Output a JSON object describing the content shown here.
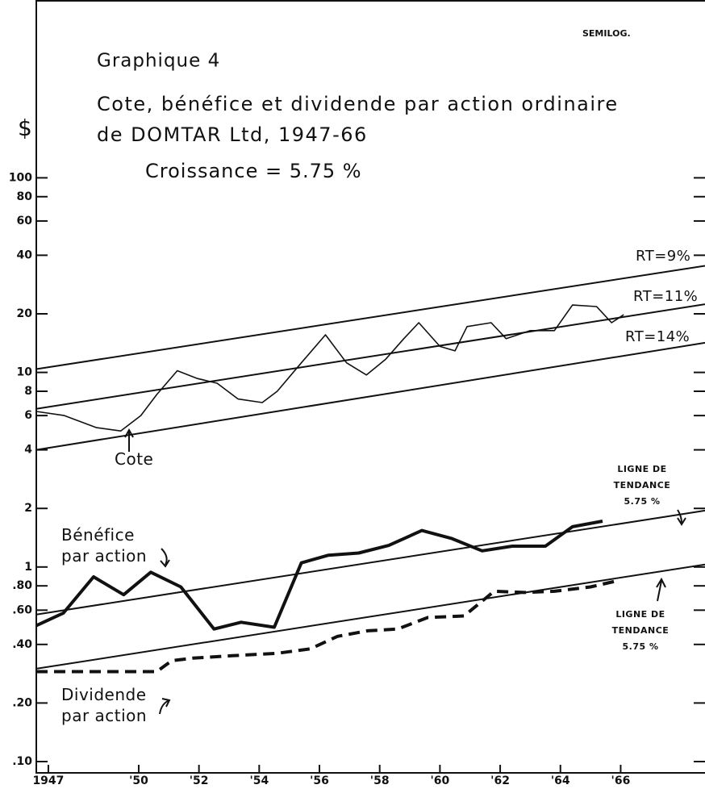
{
  "chart_data": {
    "type": "line",
    "corner_note": "SEMILOG.",
    "figure_label": "Graphique 4",
    "title": "Cote, bénéfice et dividende par action ordinaire",
    "subtitle": "de DOMTAR Ltd, 1947-66",
    "growth_note": "Croissance = 5.75 %",
    "y_label": "$",
    "log_scale": true,
    "xlim": [
      1946.6,
      1968.8
    ],
    "xticks": [
      {
        "value": 1947,
        "label": "1947"
      },
      {
        "value": 1950,
        "label": "'50"
      },
      {
        "value": 1952,
        "label": "'52"
      },
      {
        "value": 1954,
        "label": "'54"
      },
      {
        "value": 1956,
        "label": "'56"
      },
      {
        "value": 1958,
        "label": "'58"
      },
      {
        "value": 1960,
        "label": "'60"
      },
      {
        "value": 1962,
        "label": "'62"
      },
      {
        "value": 1964,
        "label": "'64"
      },
      {
        "value": 1966,
        "label": "'66"
      }
    ],
    "ylim": [
      0.0875,
      820
    ],
    "yticks": [
      100,
      80,
      60,
      40,
      20,
      10,
      8,
      6,
      4,
      2,
      1,
      {
        "value": 0.8,
        "label": ".80"
      },
      {
        "value": 0.6,
        "label": ".60"
      },
      {
        "value": 0.4,
        "label": ".40"
      },
      {
        "value": 0.2,
        "label": ".20"
      },
      {
        "value": 0.1,
        "label": ".10"
      }
    ],
    "series": [
      {
        "name": "Cote",
        "color": "#111111",
        "line_style": "solid",
        "line_width": 1.6,
        "x": [
          1946.6,
          1947.53,
          1948.6,
          1949.4,
          1950.07,
          1950.6,
          1951.28,
          1951.95,
          1952.6,
          1953.3,
          1954.1,
          1954.6,
          1955.4,
          1956.2,
          1956.9,
          1957.56,
          1958.2,
          1958.8,
          1959.3,
          1960.0,
          1960.5,
          1960.9,
          1961.7,
          1962.2,
          1963.0,
          1963.8,
          1964.4,
          1965.2,
          1965.7,
          1966.1
        ],
        "values": [
          6.3,
          6.0,
          5.2,
          5.0,
          6.0,
          7.7,
          10.2,
          9.3,
          8.8,
          7.3,
          7.0,
          8.0,
          11.2,
          15.6,
          11.2,
          9.7,
          11.7,
          14.9,
          18.0,
          13.6,
          12.9,
          17.2,
          18.0,
          14.9,
          16.4,
          16.4,
          22.2,
          21.8,
          18.0,
          19.8
        ]
      },
      {
        "name": "Bénéfice par action",
        "color": "#111111",
        "line_style": "solid",
        "line_width": 4,
        "x": [
          1946.6,
          1947.5,
          1948.5,
          1949.5,
          1950.4,
          1951.4,
          1952.5,
          1953.4,
          1954.5,
          1955.4,
          1956.3,
          1957.3,
          1958.3,
          1959.4,
          1960.4,
          1961.4,
          1962.4,
          1963.5,
          1964.4,
          1965.4
        ],
        "values": [
          0.5,
          0.58,
          0.89,
          0.72,
          0.94,
          0.79,
          0.48,
          0.52,
          0.49,
          1.05,
          1.15,
          1.18,
          1.29,
          1.54,
          1.4,
          1.21,
          1.28,
          1.28,
          1.61,
          1.72
        ]
      },
      {
        "name": "Dividende par action",
        "color": "#111111",
        "line_style": "dashed",
        "line_width": 4,
        "x": [
          1946.6,
          1950.6,
          1951.1,
          1951.8,
          1953.1,
          1954.6,
          1955.7,
          1956.6,
          1957.6,
          1958.6,
          1959.6,
          1960.8,
          1961.8,
          1962.8,
          1963.8,
          1965.0,
          1965.9
        ],
        "values": [
          0.29,
          0.29,
          0.33,
          0.34,
          0.35,
          0.36,
          0.38,
          0.44,
          0.47,
          0.48,
          0.55,
          0.56,
          0.75,
          0.74,
          0.75,
          0.79,
          0.85
        ]
      },
      {
        "name": "RT=9%",
        "color": "#111111",
        "line_style": "solid",
        "line_width": 2,
        "x": [
          1946.6,
          1968.8
        ],
        "values": [
          10.4,
          35.3
        ]
      },
      {
        "name": "RT=11%",
        "color": "#111111",
        "line_style": "solid",
        "line_width": 2,
        "x": [
          1946.6,
          1968.8
        ],
        "values": [
          6.5,
          22.4
        ]
      },
      {
        "name": "RT=14%",
        "color": "#111111",
        "line_style": "solid",
        "line_width": 2,
        "x": [
          1946.6,
          1968.8
        ],
        "values": [
          4.0,
          14.2
        ]
      },
      {
        "name": "LIGNE DE TENDANCE 5.75 %",
        "color": "#111111",
        "line_style": "solid",
        "line_width": 2,
        "x": [
          1946.6,
          1968.8
        ],
        "values": [
          0.57,
          1.95
        ]
      },
      {
        "name": "LIGNE DE TENDANCE 5.75 %",
        "color": "#111111",
        "line_style": "solid",
        "line_width": 2,
        "x": [
          1946.6,
          1968.8
        ],
        "values": [
          0.3,
          1.03
        ]
      }
    ]
  }
}
